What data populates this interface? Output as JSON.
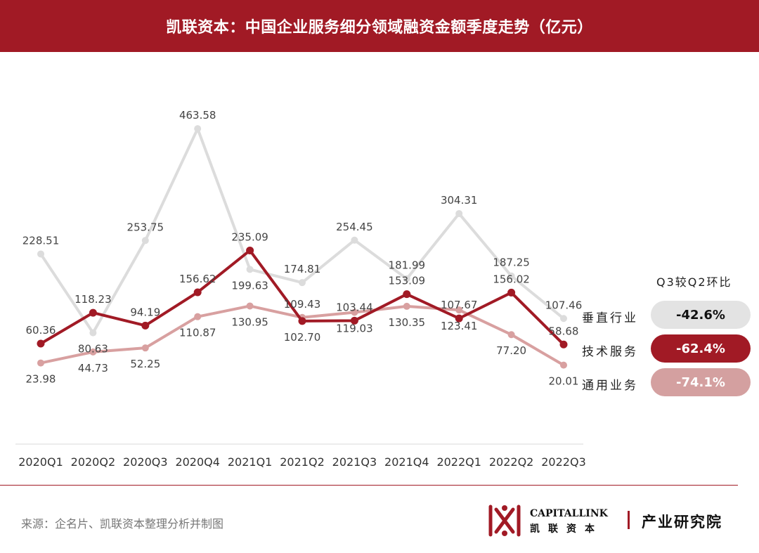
{
  "title": "凯联资本：中国企业服务细分领域融资金额季度走势（亿元）",
  "chart_data": {
    "type": "line",
    "categories": [
      "2020Q1",
      "2020Q2",
      "2020Q3",
      "2020Q4",
      "2021Q1",
      "2021Q2",
      "2021Q3",
      "2021Q4",
      "2022Q1",
      "2022Q2",
      "2022Q3"
    ],
    "series": [
      {
        "name": "垂直行业",
        "color": "#dcdcdc",
        "labels_above": true,
        "values": [
          228.51,
          80.63,
          253.75,
          463.58,
          199.63,
          174.81,
          254.45,
          181.99,
          304.31,
          187.25,
          107.46
        ]
      },
      {
        "name": "技术服务",
        "color": "#a11a25",
        "labels_above": true,
        "values": [
          60.36,
          118.23,
          94.19,
          156.62,
          235.09,
          102.7,
          103.44,
          153.09,
          107.67,
          156.02,
          58.68
        ]
      },
      {
        "name": "通用业务",
        "color": "#d8a0a0",
        "labels_above": false,
        "values": [
          23.98,
          44.73,
          52.25,
          110.87,
          130.95,
          109.43,
          119.03,
          130.35,
          123.41,
          77.2,
          20.01
        ]
      }
    ],
    "title": "凯联资本：中国企业服务细分领域融资金额季度走势（亿元）",
    "grid": false
  },
  "label_overrides": {
    "垂直行业": {
      "1": "below",
      "4": "below",
      "10": "above"
    },
    "技术服务": {
      "5": "below"
    },
    "通用业务": {
      "3": "below",
      "4": "below",
      "5": "above",
      "7": "below",
      "8": "below",
      "9": "below"
    }
  },
  "legend": {
    "heading": "Q3较Q2环比",
    "items": [
      {
        "name": "垂直行业",
        "change": "-42.6%",
        "pill_color": "#e3e3e3",
        "text_color": "#111111"
      },
      {
        "name": "技术服务",
        "change": "-62.4%",
        "pill_color": "#a11a25",
        "text_color": "#ffffff"
      },
      {
        "name": "通用业务",
        "change": "-74.1%",
        "pill_color": "#d4a0a0",
        "text_color": "#ffffff"
      }
    ]
  },
  "source": "来源：企名片、凯联资本整理分析并制图",
  "logo": {
    "en": "CAPITALLINK",
    "cn": "凯联资本",
    "institute": "产业研究院"
  }
}
